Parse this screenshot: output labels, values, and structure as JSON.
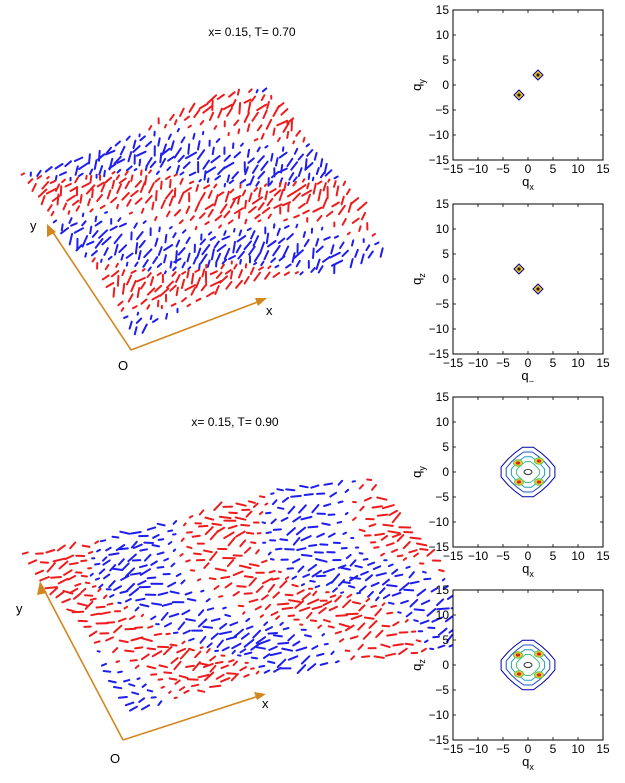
{
  "colors": {
    "spin_up": "#ee1c1c",
    "spin_down": "#1e1eee",
    "axis_arrow": "#d4861e",
    "peak_fill": "#f5c518",
    "peak_core": "#1a1a1a",
    "contour_outer": "#0000aa",
    "contour_inner": "#d42a2a"
  },
  "panels": {
    "top_left": {
      "title": "x= 0.15, T= 0.70",
      "axis_x": "x",
      "axis_y": "y",
      "origin": "O"
    },
    "bottom_left": {
      "title": "x= 0.15, T= 0.90",
      "axis_x": "x",
      "axis_y": "y",
      "origin": "O"
    }
  },
  "chart_data": [
    {
      "type": "scatter",
      "panel": "structure-factor-1",
      "xlabel": "q_x",
      "ylabel": "q_y",
      "xlim": [
        -15,
        15
      ],
      "ylim": [
        -15,
        15
      ],
      "xticks": [
        "−15",
        "−10",
        "−5",
        "0",
        "5",
        "10",
        "15"
      ],
      "yticks": [
        "15",
        "10",
        "5",
        "0",
        "−5",
        "−10",
        "−15"
      ],
      "peaks": [
        {
          "x": -1.8,
          "y": -2.0
        },
        {
          "x": 2.0,
          "y": 2.0
        }
      ]
    },
    {
      "type": "scatter",
      "panel": "structure-factor-2",
      "xlabel": "q_⌣",
      "ylabel": "q_z",
      "xlim": [
        -15,
        15
      ],
      "ylim": [
        -15,
        15
      ],
      "xticks": [
        "−15",
        "−10",
        "−5",
        "0",
        "5",
        "10",
        "15"
      ],
      "yticks": [
        "15",
        "10",
        "5",
        "0",
        "−5",
        "−10",
        "−15"
      ],
      "peaks": [
        {
          "x": -1.8,
          "y": 2.0
        },
        {
          "x": 2.0,
          "y": -2.0
        }
      ]
    },
    {
      "type": "heatmap",
      "panel": "structure-factor-3",
      "xlabel": "q_x",
      "ylabel": "q_y",
      "xlim": [
        -15,
        15
      ],
      "ylim": [
        -15,
        15
      ],
      "xticks": [
        "−15",
        "−10",
        "−5",
        "0",
        "5",
        "10",
        "15"
      ],
      "yticks": [
        "15",
        "10",
        "5",
        "0",
        "−5",
        "−10",
        "−15"
      ],
      "contour_center": [
        0,
        0
      ],
      "contour_radii": [
        5.2,
        4.2,
        3.2,
        2.2
      ],
      "hotspots": [
        {
          "x": 2.2,
          "y": 2.2
        },
        {
          "x": 2.2,
          "y": -2.0
        },
        {
          "x": -2.0,
          "y": 1.8
        },
        {
          "x": -1.8,
          "y": -2.0
        }
      ]
    },
    {
      "type": "heatmap",
      "panel": "structure-factor-4",
      "xlabel": "q_x",
      "ylabel": "q_z",
      "xlim": [
        -15,
        15
      ],
      "ylim": [
        -15,
        15
      ],
      "xticks": [
        "−15",
        "−10",
        "−5",
        "0",
        "5",
        "10",
        "15"
      ],
      "yticks": [
        "15",
        "10",
        "5",
        "0",
        "−5",
        "−10",
        "−15"
      ],
      "contour_center": [
        0,
        0
      ],
      "contour_radii": [
        5.2,
        4.2,
        3.2,
        2.2
      ],
      "hotspots": [
        {
          "x": 2.2,
          "y": 2.2
        },
        {
          "x": 2.2,
          "y": -2.0
        },
        {
          "x": -2.0,
          "y": 2.0
        },
        {
          "x": -1.8,
          "y": -1.8
        }
      ]
    }
  ]
}
